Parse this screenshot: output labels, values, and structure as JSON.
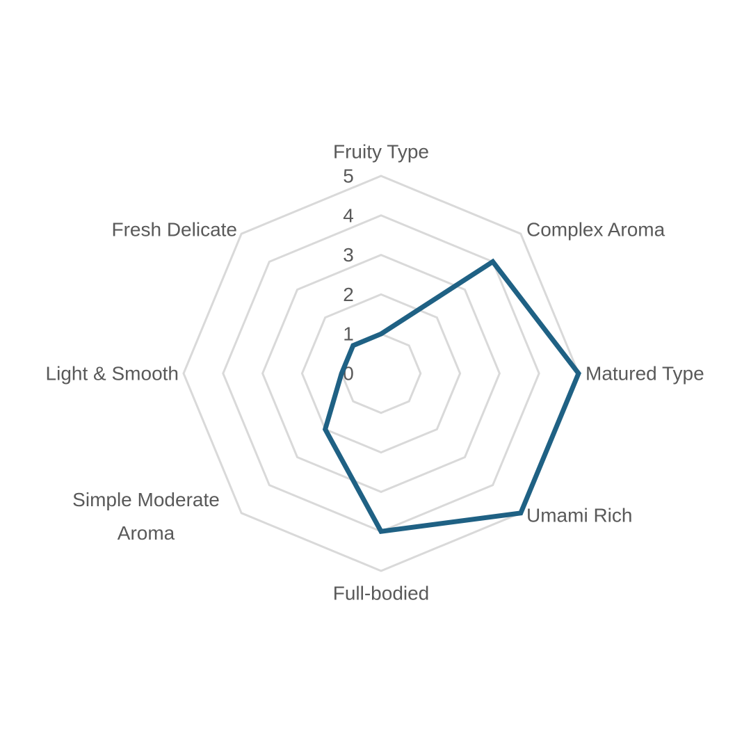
{
  "chart_data": {
    "type": "radar",
    "title": "",
    "categories": [
      "Fruity Type",
      "Complex Aroma",
      "Matured Type",
      "Umami Rich",
      "Full-bodied",
      "Simple Moderate Aroma",
      "Light & Smooth",
      "Fresh Delicate"
    ],
    "series": [
      {
        "values": [
          1,
          4,
          5,
          5,
          4,
          2,
          1,
          1
        ],
        "color": "#1f6184"
      }
    ],
    "rlim": [
      0,
      5
    ],
    "ticks": [
      "0",
      "1",
      "2",
      "3",
      "4",
      "5"
    ],
    "grid": true,
    "grid_color": "#d9d9d9",
    "legend": "none"
  }
}
